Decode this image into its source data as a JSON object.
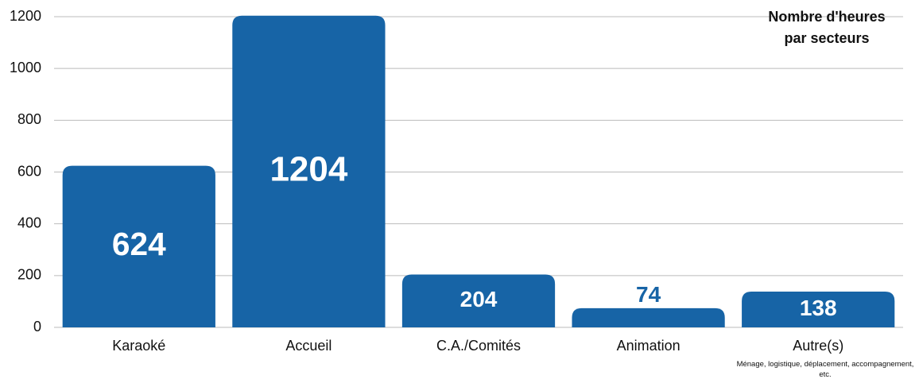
{
  "chart_data": {
    "type": "bar",
    "title": "Nombre d'heures par secteurs",
    "categories": [
      "Karaoké",
      "Accueil",
      "C.A./Comités",
      "Animation",
      "Autre(s)"
    ],
    "values": [
      624,
      1204,
      204,
      74,
      138
    ],
    "color": "#1764a6",
    "annotation": "Ménage, logistique, déplacement, accompagnement, etc.",
    "ylim": [
      0,
      1200
    ],
    "yticks": [
      0,
      200,
      400,
      600,
      800,
      1000,
      1200
    ],
    "grid": true
  }
}
